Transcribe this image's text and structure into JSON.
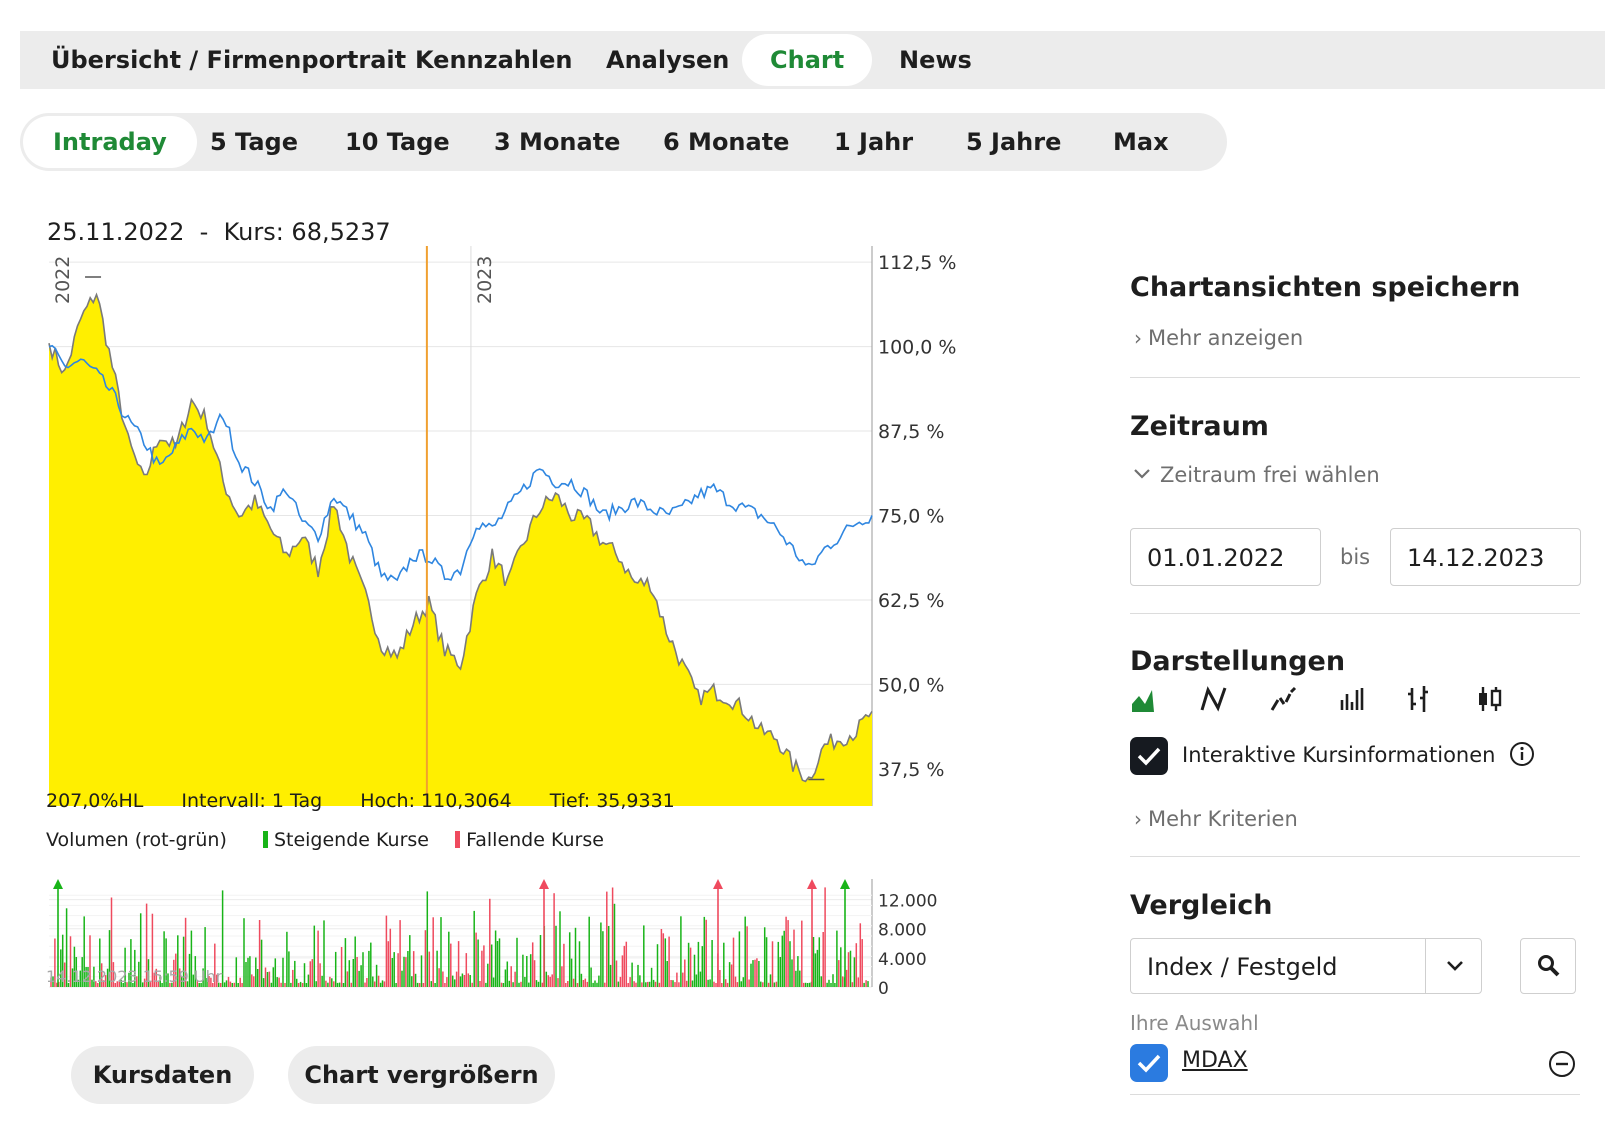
{
  "topnav": {
    "tabs": [
      {
        "label": "Übersicht / Firmenportrait"
      },
      {
        "label": "Kennzahlen"
      },
      {
        "label": "Analysen"
      },
      {
        "label": "Chart"
      },
      {
        "label": "News"
      }
    ],
    "active": "Chart"
  },
  "ranges": {
    "buttons": [
      {
        "label": "Intraday"
      },
      {
        "label": "5 Tage"
      },
      {
        "label": "10 Tage"
      },
      {
        "label": "3 Monate"
      },
      {
        "label": "6 Monate"
      },
      {
        "label": "1 Jahr"
      },
      {
        "label": "5 Jahre"
      },
      {
        "label": "Max"
      }
    ],
    "active": "Intraday"
  },
  "chart_header": "25.11.2022  -  Kurs: 68,5237",
  "chart_stats": {
    "hl": "207,0%HL",
    "interval": "Intervall: 1 Tag",
    "high": "Hoch: 110,3064",
    "low": "Tief: 35,9331"
  },
  "volume_legend": {
    "title": "Volumen (rot-grün)",
    "rising": "Steigende Kurse",
    "falling": "Fallende Kurse"
  },
  "timestamp": "14.12.2023 15:59 Uhr",
  "buttons": {
    "kursdaten": "Kursdaten",
    "enlarge": "Chart vergrößern"
  },
  "sidebar": {
    "save_title": "Chartansichten speichern",
    "more_show": "Mehr anzeigen",
    "zeitraum_title": "Zeitraum",
    "zeitraum_free": "Zeitraum frei wählen",
    "from_date": "01.01.2022",
    "bis": "bis",
    "to_date": "14.12.2023",
    "darstellungen_title": "Darstellungen",
    "interactive_label": "Interaktive Kursinformationen",
    "more_criteria": "Mehr Kriterien",
    "vergleich_title": "Vergleich",
    "compare_select": "Index / Festgeld",
    "your_choice": "Ihre Auswahl",
    "selected_index": "MDAX"
  },
  "colors": {
    "accent_green": "#1f8a36",
    "area_fill": "#ffef00",
    "price_line": "#7a7a7a",
    "compare_line": "#2f86e0",
    "crosshair": "#f0a030",
    "volume_up": "#18b418",
    "volume_down": "#ef4a5e"
  },
  "chart_data": {
    "type": "area",
    "x_start": "2022-01-03",
    "x_end": "2023-12-14",
    "year_labels": [
      "2022",
      "2023"
    ],
    "crosshair_date": "2022-11-25",
    "y_ticks": [
      "112,5 %",
      "100,0 %",
      "87,5 %",
      "75,0 %",
      "62,5 %",
      "50,0 %",
      "37,5 %"
    ],
    "y_tick_values": [
      112.5,
      100.0,
      87.5,
      75.0,
      62.5,
      50.0,
      37.5
    ],
    "ylim": [
      32,
      114
    ],
    "series": [
      {
        "name": "Kurs",
        "style": "area",
        "values": [
          100.5,
          96,
          104,
          108,
          97,
          86,
          80,
          87,
          85,
          92,
          89,
          80,
          75,
          77,
          73,
          69,
          72,
          67,
          77,
          69,
          63,
          56,
          54,
          59,
          62,
          55,
          53,
          63,
          69,
          65,
          71,
          76,
          78,
          75,
          74,
          71,
          69,
          65,
          65,
          58,
          53,
          48,
          49,
          48,
          46,
          43,
          42,
          38,
          36,
          41,
          42,
          43,
          46
        ]
      },
      {
        "name": "MDAX",
        "style": "line",
        "values": [
          100,
          97,
          98,
          96,
          93,
          89,
          86,
          82,
          85,
          88,
          86,
          90,
          83,
          80,
          76,
          79,
          74,
          72,
          78,
          75,
          72,
          66,
          65,
          69,
          69,
          66,
          67,
          74,
          73,
          76,
          79,
          82,
          80,
          80,
          78,
          75,
          76,
          77,
          76,
          75,
          76,
          78,
          79,
          77,
          76,
          75,
          73,
          70,
          67,
          70,
          72,
          74,
          75
        ]
      }
    ],
    "volume": {
      "ticks": [
        "12.000",
        "8.000",
        "4.000",
        "0"
      ],
      "tick_values": [
        12000,
        8000,
        4000,
        0
      ],
      "ylim": [
        0,
        14000
      ]
    }
  }
}
